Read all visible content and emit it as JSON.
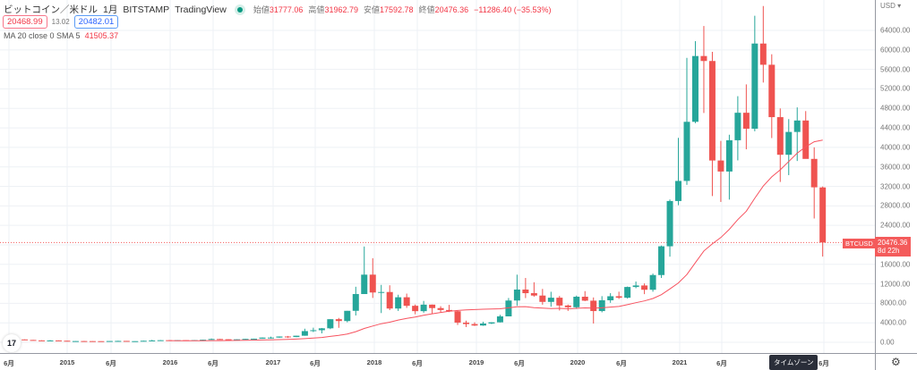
{
  "header": {
    "symbol": "ビットコイン／米ドル",
    "interval": "1月",
    "exchange": "BITSTAMP",
    "source": "TradingView",
    "open_label": "始値",
    "open": "31777.06",
    "high_label": "高値",
    "high": "31962.79",
    "low_label": "安値",
    "low": "17592.78",
    "close_label": "終値",
    "close": "20476.36",
    "change": "−11286.40 (−35.53%)"
  },
  "quote": {
    "bid": "20468.99",
    "spread": "13.02",
    "ask": "20482.01"
  },
  "indicator": {
    "label": "MA 20 close 0 SMA 5",
    "value": "41505.37"
  },
  "axis": {
    "currency": "USD",
    "settings_icon": "gear-icon",
    "price_labels": [
      "0.00",
      "4000.00",
      "8000.00",
      "12000.00",
      "16000.00",
      "24000.00",
      "28000.00",
      "32000.00",
      "36000.00",
      "40000.00",
      "44000.00",
      "48000.00",
      "52000.00",
      "56000.00",
      "60000.00",
      "64000.00"
    ],
    "time_labels": [
      "6月",
      "2015",
      "6月",
      "2016",
      "6月",
      "2017",
      "6月",
      "2018",
      "6月",
      "2019",
      "6月",
      "2020",
      "6月",
      "2021",
      "6月",
      "6月"
    ]
  },
  "current": {
    "symbol": "BTCUSD",
    "price": "20476.36",
    "countdown": "8d 22h"
  },
  "tooltip": "タイムゾーン",
  "logo": "TV",
  "colors": {
    "up": "#26a69a",
    "down": "#ef5350",
    "ma": "#f7525f"
  },
  "chart_data": {
    "type": "candlestick",
    "title": "ビットコイン／米ドル 1月 BITSTAMP",
    "start": "2014-06",
    "interval": "month",
    "ylim": [
      0,
      70000
    ],
    "ma_period": 20,
    "ohlc": [
      [
        630,
        680,
        540,
        640
      ],
      [
        640,
        660,
        565,
        585
      ],
      [
        585,
        600,
        440,
        480
      ],
      [
        480,
        500,
        370,
        387
      ],
      [
        387,
        420,
        290,
        338
      ],
      [
        338,
        460,
        316,
        378
      ],
      [
        378,
        400,
        310,
        320
      ],
      [
        320,
        320,
        152,
        217
      ],
      [
        217,
        265,
        212,
        254
      ],
      [
        254,
        300,
        236,
        244
      ],
      [
        244,
        260,
        215,
        236
      ],
      [
        236,
        247,
        225,
        230
      ],
      [
        230,
        268,
        220,
        263
      ],
      [
        263,
        317,
        252,
        284
      ],
      [
        284,
        284,
        198,
        230
      ],
      [
        230,
        247,
        224,
        236
      ],
      [
        236,
        334,
        236,
        314
      ],
      [
        314,
        502,
        306,
        378
      ],
      [
        378,
        467,
        350,
        430
      ],
      [
        430,
        460,
        355,
        368
      ],
      [
        368,
        448,
        365,
        437
      ],
      [
        437,
        440,
        393,
        416
      ],
      [
        416,
        470,
        412,
        448
      ],
      [
        448,
        548,
        436,
        531
      ],
      [
        531,
        780,
        528,
        673
      ],
      [
        673,
        703,
        604,
        624
      ],
      [
        624,
        626,
        468,
        575
      ],
      [
        575,
        630,
        570,
        608
      ],
      [
        608,
        720,
        605,
        699
      ],
      [
        699,
        750,
        690,
        745
      ],
      [
        745,
        980,
        739,
        966
      ],
      [
        966,
        1160,
        750,
        970
      ],
      [
        970,
        1210,
        925,
        1190
      ],
      [
        1190,
        1300,
        890,
        1080
      ],
      [
        1080,
        1350,
        1060,
        1350
      ],
      [
        1350,
        2790,
        1350,
        2300
      ],
      [
        2300,
        3000,
        2100,
        2480
      ],
      [
        2480,
        2940,
        1830,
        2870
      ],
      [
        2870,
        4740,
        2700,
        4740
      ],
      [
        4740,
        5000,
        2970,
        4360
      ],
      [
        4360,
        6450,
        4100,
        6460
      ],
      [
        6460,
        11400,
        5500,
        9900
      ],
      [
        9900,
        19660,
        9900,
        13880
      ],
      [
        13880,
        17250,
        9100,
        10220
      ],
      [
        10220,
        11780,
        6000,
        10320
      ],
      [
        10320,
        11700,
        6600,
        6930
      ],
      [
        6930,
        9760,
        6430,
        9240
      ],
      [
        9240,
        9990,
        7060,
        7490
      ],
      [
        7490,
        7760,
        5750,
        6390
      ],
      [
        6390,
        8490,
        6070,
        7730
      ],
      [
        7730,
        7750,
        5880,
        7020
      ],
      [
        7020,
        7410,
        6100,
        6630
      ],
      [
        6630,
        7680,
        6200,
        6370
      ],
      [
        6370,
        6570,
        3560,
        4040
      ],
      [
        4040,
        4440,
        3130,
        3740
      ],
      [
        3740,
        4100,
        3350,
        3440
      ],
      [
        3440,
        4200,
        3380,
        3850
      ],
      [
        3850,
        4130,
        3730,
        4100
      ],
      [
        4100,
        5630,
        4070,
        5320
      ],
      [
        5320,
        9090,
        5320,
        8570
      ],
      [
        8570,
        13880,
        7480,
        10820
      ],
      [
        10820,
        13200,
        9070,
        10080
      ],
      [
        10080,
        12320,
        9350,
        9590
      ],
      [
        9590,
        10950,
        7710,
        8290
      ],
      [
        8290,
        10370,
        7300,
        9150
      ],
      [
        9150,
        9510,
        6520,
        7550
      ],
      [
        7550,
        7750,
        6430,
        7190
      ],
      [
        7190,
        9580,
        6850,
        9350
      ],
      [
        9350,
        10500,
        8450,
        8540
      ],
      [
        8540,
        9200,
        3850,
        6410
      ],
      [
        6410,
        9470,
        6150,
        8620
      ],
      [
        8620,
        10080,
        8100,
        9450
      ],
      [
        9450,
        10380,
        8900,
        9140
      ],
      [
        9140,
        11440,
        8980,
        11350
      ],
      [
        11350,
        12470,
        11100,
        11660
      ],
      [
        11660,
        12090,
        9880,
        10780
      ],
      [
        10780,
        14100,
        10380,
        13800
      ],
      [
        13800,
        19850,
        13200,
        19700
      ],
      [
        19700,
        29300,
        17570,
        28990
      ],
      [
        28990,
        41950,
        28130,
        33110
      ],
      [
        33110,
        58350,
        32300,
        45240
      ],
      [
        45240,
        61790,
        44960,
        58740
      ],
      [
        58740,
        64900,
        47050,
        57720
      ],
      [
        57720,
        59600,
        30000,
        37300
      ],
      [
        37300,
        41330,
        28800,
        35040
      ],
      [
        35040,
        42590,
        29280,
        41460
      ],
      [
        41460,
        50500,
        37330,
        47100
      ],
      [
        47100,
        52920,
        39600,
        43820
      ],
      [
        43820,
        67000,
        43300,
        61300
      ],
      [
        61300,
        69000,
        53300,
        56950
      ],
      [
        56950,
        59100,
        41900,
        46200
      ],
      [
        46200,
        47990,
        32900,
        38480
      ],
      [
        38480,
        45800,
        34300,
        43160
      ],
      [
        43160,
        48200,
        37200,
        45510
      ],
      [
        45510,
        47440,
        37700,
        37630
      ],
      [
        37630,
        40000,
        25400,
        31800
      ],
      [
        31777.06,
        31962.79,
        17592.78,
        20476.36
      ]
    ]
  }
}
